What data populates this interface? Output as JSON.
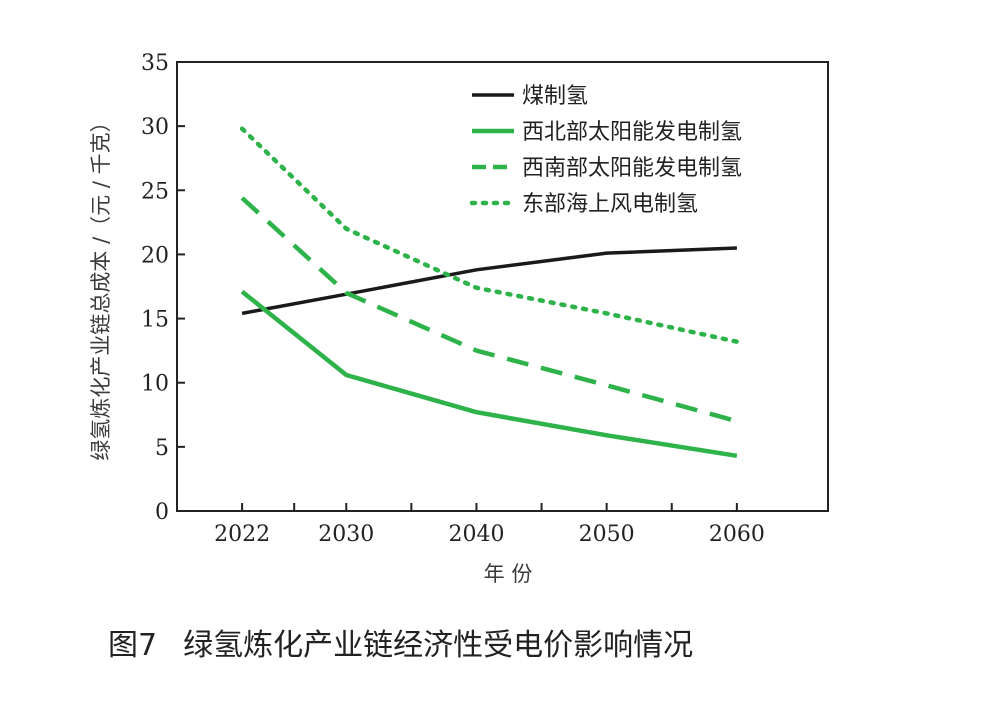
{
  "caption": {
    "figure_number": "图7",
    "text": "绿氢炼化产业链经济性受电价影响情况"
  },
  "chart_data": {
    "type": "line",
    "xlabel": "年 份",
    "ylabel": "绿氢炼化产业链总成本 /（元 / 千克）",
    "ylim": [
      0,
      35
    ],
    "yticks": [
      0,
      5,
      10,
      15,
      20,
      25,
      30,
      35
    ],
    "xticks": [
      2022,
      2030,
      2040,
      2050,
      2060
    ],
    "xlim": [
      2017,
      2067
    ],
    "grid": false,
    "legend_position": "top-right",
    "series": [
      {
        "name": "煤制氢",
        "color": "#1a1a1a",
        "dash": "solid",
        "x": [
          2022,
          2030,
          2040,
          2050,
          2060
        ],
        "y": [
          15.4,
          16.9,
          18.8,
          20.1,
          20.5
        ]
      },
      {
        "name": "西北部太阳能发电制氢",
        "color": "#2db34a",
        "dash": "solid",
        "x": [
          2022,
          2030,
          2040,
          2050,
          2060
        ],
        "y": [
          17.1,
          10.6,
          7.7,
          5.9,
          4.3
        ]
      },
      {
        "name": "西南部太阳能发电制氢",
        "color": "#2db34a",
        "dash": "dashed",
        "x": [
          2022,
          2030,
          2040,
          2050,
          2060
        ],
        "y": [
          24.4,
          17.0,
          12.5,
          9.8,
          7.0
        ]
      },
      {
        "name": "东部海上风电制氢",
        "color": "#2db34a",
        "dash": "dotted",
        "x": [
          2022,
          2030,
          2040,
          2050,
          2060
        ],
        "y": [
          29.8,
          22.0,
          17.4,
          15.4,
          13.2
        ]
      }
    ]
  }
}
